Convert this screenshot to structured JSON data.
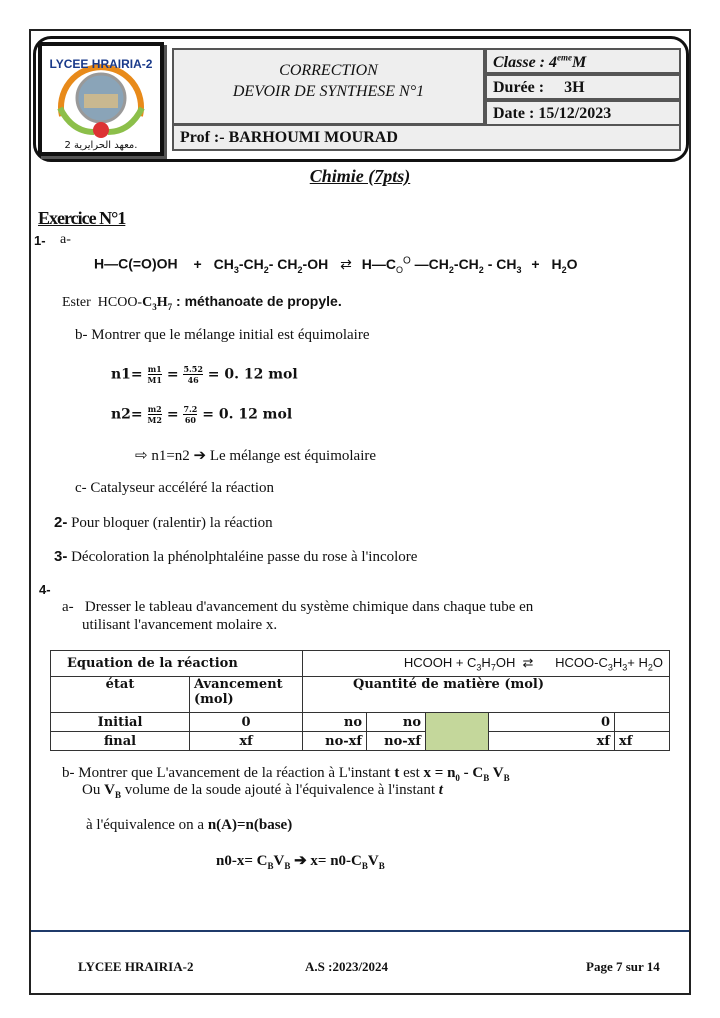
{
  "header": {
    "logo_text": "LYCEE HRAIRIA-2",
    "logo_arabic": "معهد الحرايرية 2.",
    "title1": "CORRECTION",
    "title2": "DEVOIR DE SYNTHESE N°1",
    "classe": "Classe : 4emeM",
    "duree": "Durée :     3H",
    "date": "Date : 15/12/2023",
    "prof": "Prof :-  BARHOUMI MOURAD"
  },
  "section_title": "Chimie (7pts)",
  "exercise_title": "Exercice N°1",
  "q1": {
    "num": "1-",
    "a": "a-",
    "eq_left": "H—C(=O)OH",
    "plus1": "+",
    "alcohol": "CH3-CH2- CH2-OH",
    "eq_product": "H—C(=O)O —CH2-CH2 - CH3",
    "plus2": "+",
    "water": "H2O",
    "ester_label": "Ester  HCOO-",
    "ester_formula": "C3H7",
    "ester_name": " : méthanoate de propyle.",
    "b": "b-  Montrer que le mélange initial est équimolaire",
    "n1": "n1=  m1/M1 = 5.52/46 = 0. 12 mol",
    "n2": "n2=  m2/M2 = 7.2/60 = 0. 12 mol",
    "concl": "⇨  n1=n2  ➔ Le mélange est équimolaire",
    "c": "c-  Catalyseur accéléré la réaction"
  },
  "q2": {
    "num": "2-",
    "text": "Pour bloquer (ralentir) la réaction"
  },
  "q3": {
    "num": "3-",
    "text": "Décoloration la phénolphtaléine passe du rose à l'incolore"
  },
  "q4": {
    "num": "4-",
    "a": "a-   Dresser le tableau d'avancement du système chimique dans chaque tube en",
    "a2": "utilisant l'avancement molaire x.",
    "table": {
      "eq_label": "Equation de la réaction",
      "eq": "HCOOH + C3H7OH  ⇄  HCOO-C3H3+ H2O",
      "etat": "état",
      "avancement": "Avancement (mol)",
      "quantite": "Quantité de matière (mol)",
      "rows": [
        [
          "Initial",
          "0",
          "no",
          "no",
          "",
          "0",
          ""
        ],
        [
          "final",
          "xf",
          "no-xf",
          "no-xf",
          "",
          "xf",
          "xf"
        ]
      ],
      "highlight_color": "#c4d79b"
    },
    "b1": "b-  Montrer que L'avancement de la réaction à L'instant t est x = n0 - CB VB",
    "b2": "Ou VB volume de la soude ajouté à l'équivalence à l'instant t",
    "b3": "à l'équivalence  on a  n(A)=n(base)",
    "b4": "n0-x= CBVB  ➔ x= n0-CBVB"
  },
  "footer": {
    "school": "LYCEE HRAIRIA-2",
    "year": "A.S :2023/2024",
    "page": "Page 7 sur 14"
  }
}
